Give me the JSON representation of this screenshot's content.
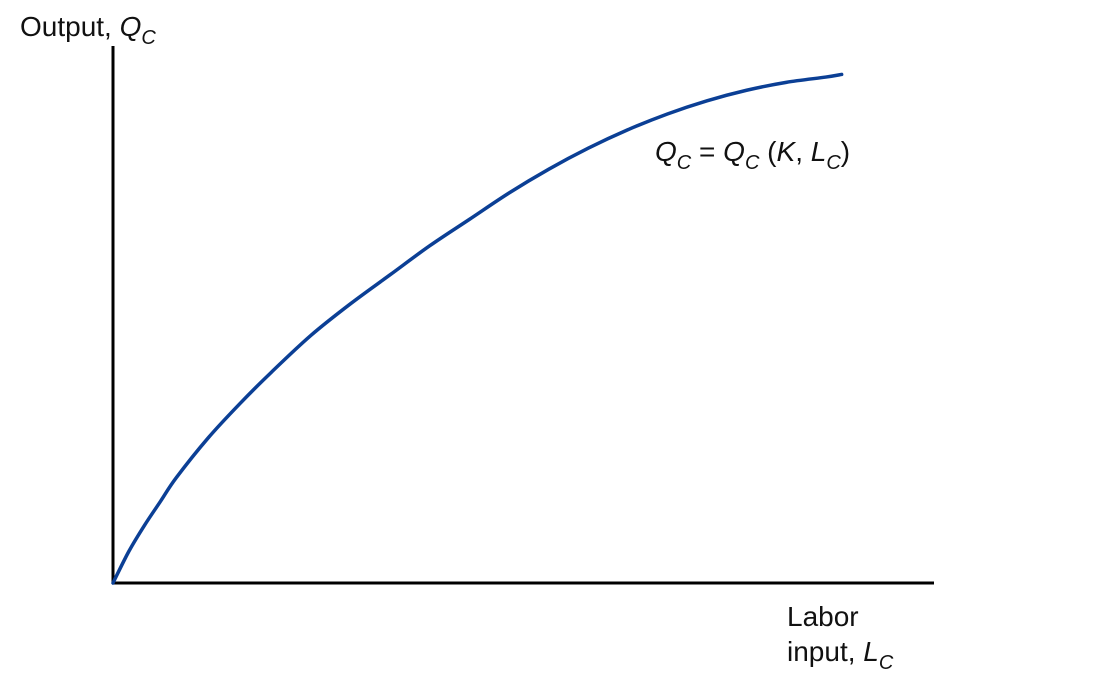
{
  "chart_data": {
    "type": "line",
    "ylabel": {
      "prefix": "Output, ",
      "symbol": "Q",
      "subscript": "C"
    },
    "xlabel": {
      "line1": "Labor",
      "line2_prefix": "input, ",
      "symbol": "L",
      "subscript": "C"
    },
    "curve_label": {
      "lhs_symbol": "Q",
      "lhs_sub": "C",
      "equals": " = ",
      "rhs_symbol": "Q",
      "rhs_sub": "C",
      "args_open": " (",
      "arg1": "K",
      "sep": ", ",
      "arg2_symbol": "L",
      "arg2_sub": "C",
      "args_close": ")"
    },
    "xlim": [
      0,
      100
    ],
    "ylim": [
      0,
      100
    ],
    "grid": false,
    "ticks": false,
    "series": [
      {
        "color": "#0b3f95",
        "x": [
          0,
          2,
          4,
          6,
          8,
          12,
          16,
          20,
          25,
          30,
          35,
          40,
          45,
          50,
          55,
          60,
          65,
          70,
          75,
          80,
          85,
          90,
          92
        ],
        "y": [
          0,
          6,
          11,
          15.5,
          20,
          27.5,
          34,
          40,
          47,
          53,
          58.5,
          64,
          69,
          74,
          78.5,
          82.5,
          86,
          89,
          91.5,
          93.5,
          95,
          96,
          96.5
        ]
      }
    ]
  }
}
